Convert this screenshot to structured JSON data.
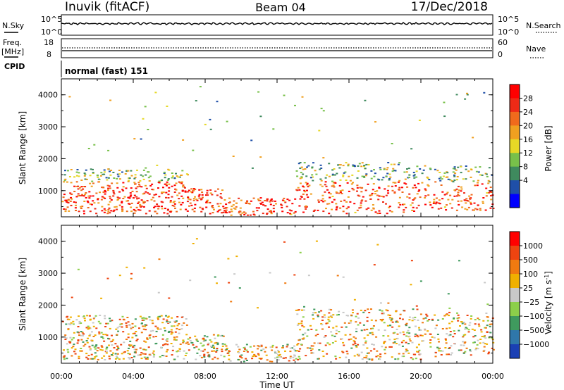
{
  "header": {
    "station": "Inuvik (fitACF)",
    "beam": "Beam 04",
    "date": "17/Dec/2018"
  },
  "panels": {
    "nsky": {
      "label": "N.Sky",
      "right_label": "N.Search",
      "left_ticks": [
        "10^5",
        "10^0"
      ],
      "right_ticks": [
        "10^5",
        "10^0"
      ]
    },
    "freq": {
      "label_line1": "Freq.",
      "label_line2": "[MHz]",
      "right_label": "Nave",
      "left_ticks": [
        "18",
        "8"
      ],
      "right_ticks": [
        "60",
        "0"
      ]
    },
    "cpid": {
      "label": "CPID",
      "value": "normal (fast) 151"
    }
  },
  "chart_data": [
    {
      "type": "heatmap",
      "name": "power-panel",
      "ylabel": "Slant Range [km]",
      "yticks": [
        1000,
        2000,
        3000,
        4000
      ],
      "ylim": [
        180,
        4500
      ],
      "colorbar": {
        "label": "Power [dB]",
        "tick_labels": [
          "4",
          "8",
          "12",
          "16",
          "20",
          "24",
          "28"
        ],
        "colors": [
          "#0000ff",
          "#1f4fa8",
          "#3f8a5e",
          "#78c04a",
          "#e6d826",
          "#f0a020",
          "#f06a1c",
          "#ee2a16",
          "#ff0000"
        ]
      }
    },
    {
      "type": "heatmap",
      "name": "velocity-panel",
      "ylabel": "Slant Range [km]",
      "yticks": [
        1000,
        2000,
        3000,
        4000
      ],
      "ylim": [
        180,
        4500
      ],
      "xlabel": "Time UT",
      "xticks": [
        "00:00",
        "04:00",
        "08:00",
        "12:00",
        "16:00",
        "20:00",
        "00:00"
      ],
      "colorbar": {
        "label": "Velocity [m s",
        "label_sup": "-1",
        "label_end": "]",
        "tick_labels": [
          "1000",
          "500",
          "100",
          "25",
          "−25",
          "−100",
          "−500",
          "−1000"
        ],
        "colors": [
          "#1a3fb4",
          "#2f77aa",
          "#3f9a5e",
          "#8ccf4a",
          "#c8c8c8",
          "#f0b000",
          "#f07a10",
          "#ee4410",
          "#ff0000"
        ]
      }
    }
  ]
}
